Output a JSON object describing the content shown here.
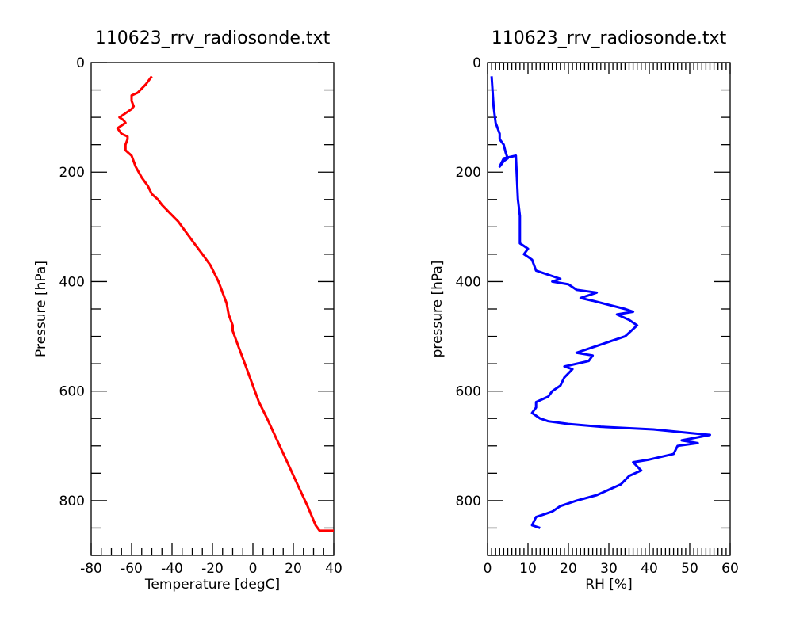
{
  "charts": [
    {
      "type": "line",
      "title": "110623_rrv_radiosonde.txt",
      "xlabel": "Temperature [degC]",
      "ylabel": "Pressure [hPa]",
      "xlim": [
        -80,
        40
      ],
      "ylim": [
        900,
        0
      ],
      "y_inverted": true,
      "x_major_ticks": [
        -80,
        -60,
        -40,
        -20,
        0,
        20,
        40
      ],
      "x_minor_step": 5,
      "y_major_ticks": [
        0,
        200,
        400,
        600,
        800
      ],
      "y_minor_step": 50,
      "line_color": "#ff0000",
      "x": [
        -50,
        -53,
        -57,
        -60,
        -60,
        -59,
        -60,
        -62,
        -64,
        -66,
        -64,
        -63,
        -65,
        -67,
        -65,
        -62,
        -62,
        -63,
        -63,
        -60,
        -58,
        -55,
        -52,
        -50,
        -47,
        -45,
        -41,
        -37,
        -33,
        -29,
        -25,
        -21,
        -17,
        -15,
        -13,
        -12,
        -10,
        -10,
        -9,
        -7,
        -5,
        -3,
        0,
        3,
        7,
        12,
        17,
        22,
        27,
        31,
        33,
        36,
        40
      ],
      "y": [
        25,
        40,
        55,
        60,
        70,
        80,
        85,
        90,
        95,
        100,
        105,
        110,
        115,
        120,
        130,
        135,
        140,
        150,
        160,
        170,
        190,
        210,
        225,
        240,
        250,
        260,
        275,
        290,
        310,
        330,
        350,
        370,
        400,
        420,
        440,
        460,
        480,
        490,
        500,
        520,
        540,
        560,
        590,
        620,
        650,
        690,
        730,
        770,
        810,
        845,
        855,
        855,
        855
      ]
    },
    {
      "type": "line",
      "title": "110623_rrv_radiosonde.txt",
      "xlabel": "RH [%]",
      "ylabel": "pressure [hPa]",
      "xlim": [
        0,
        60
      ],
      "ylim": [
        900,
        0
      ],
      "y_inverted": true,
      "x_major_ticks": [
        0,
        10,
        20,
        30,
        40,
        50,
        60
      ],
      "x_minor_step": 1,
      "y_major_ticks": [
        0,
        200,
        400,
        600,
        800
      ],
      "y_minor_step": 50,
      "dense_top_minor": true,
      "line_color": "#0000ff",
      "x": [
        1,
        1.5,
        2,
        3,
        3,
        4,
        4.5,
        5,
        4,
        3,
        4,
        7,
        7.5,
        8,
        8,
        9,
        10,
        9,
        10,
        11,
        12,
        14,
        16,
        18,
        16,
        20,
        22,
        27,
        23,
        26,
        34,
        36,
        32,
        35,
        37,
        34,
        28,
        24,
        22,
        26,
        25,
        19,
        21,
        19,
        18,
        16,
        15,
        12,
        12,
        11,
        13,
        15,
        20,
        28,
        41,
        55,
        48,
        52,
        47,
        46,
        40,
        36,
        38,
        35,
        33,
        27,
        22,
        18,
        16,
        14,
        12,
        11,
        13
      ],
      "y": [
        25,
        80,
        110,
        130,
        140,
        150,
        165,
        175,
        180,
        190,
        175,
        170,
        250,
        280,
        330,
        335,
        340,
        350,
        355,
        360,
        380,
        385,
        390,
        395,
        400,
        405,
        415,
        420,
        430,
        435,
        450,
        455,
        460,
        470,
        480,
        500,
        515,
        525,
        530,
        535,
        545,
        555,
        560,
        575,
        590,
        600,
        610,
        620,
        630,
        640,
        650,
        655,
        660,
        665,
        670,
        680,
        690,
        695,
        700,
        715,
        725,
        730,
        745,
        755,
        770,
        790,
        800,
        810,
        820,
        825,
        830,
        845,
        850
      ]
    }
  ]
}
